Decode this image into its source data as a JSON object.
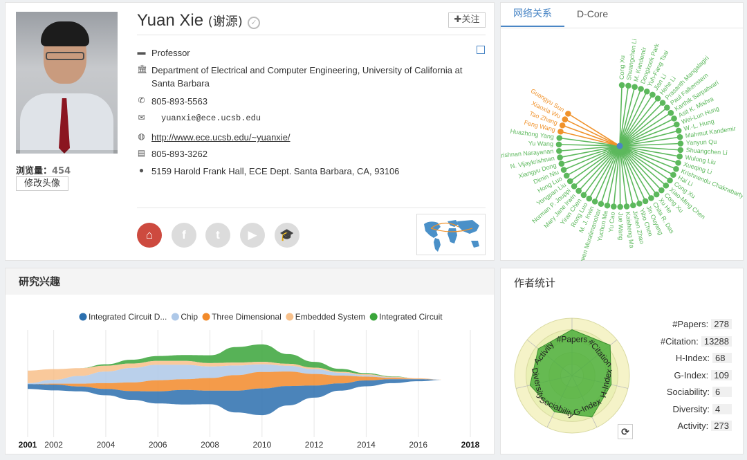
{
  "profile": {
    "name": "Yuan Xie",
    "name_cn": "(谢源)",
    "verify_icon": "check-circle-icon",
    "follow_label": "✚关注",
    "views_label": "浏览量：",
    "views_count": "454",
    "edit_avatar_label": "修改头像",
    "position": "Professor",
    "affiliation": "Department of Electrical and Computer Engineering, University of California at Santa Barbara",
    "phone": "805-893-5563",
    "email": "yuanxie@ece.ucsb.edu",
    "homepage": "http://www.ece.ucsb.edu/~yuanxie/",
    "fax": "805-893-3262",
    "address": "5159 Harold Frank Hall, ECE Dept. Santa Barbara, CA, 93106",
    "social_icons": [
      "home-icon",
      "facebook-icon",
      "twitter-icon",
      "youtube-icon",
      "scholar-icon"
    ],
    "accent_home": "#cd4a3f"
  },
  "network": {
    "tabs": [
      "网络关系",
      "D-Core"
    ],
    "center": "Yuan Xie",
    "colors": {
      "green": "#5cb85c",
      "orange": "#f0922b",
      "center": "#4a86c5"
    },
    "nodes": [
      {
        "name": "Cong Xu",
        "color": "green"
      },
      {
        "name": "Shuangchen Li",
        "color": "green"
      },
      {
        "name": "M. Kandemir",
        "color": "green"
      },
      {
        "name": "Dongkook Park",
        "color": "green"
      },
      {
        "name": "Yuh-Fang Tsai",
        "color": "green"
      },
      {
        "name": "Jian Li",
        "color": "green"
      },
      {
        "name": "Hehe Li",
        "color": "green"
      },
      {
        "name": "Prasanth Mangalagiri",
        "color": "green"
      },
      {
        "name": "Paul Falkenstern",
        "color": "green"
      },
      {
        "name": "Karthik Sarpatwari",
        "color": "green"
      },
      {
        "name": "Asit K. Mishra",
        "color": "green"
      },
      {
        "name": "Wei-Lun Hung",
        "color": "green"
      },
      {
        "name": "W.-L. Hung",
        "color": "green"
      },
      {
        "name": "Mahmut Kandemir",
        "color": "green"
      },
      {
        "name": "Yanyun Qu",
        "color": "green"
      },
      {
        "name": "Shuangchen Li",
        "color": "green"
      },
      {
        "name": "Wulong Liu",
        "color": "green"
      },
      {
        "name": "Xueqing Li",
        "color": "green"
      },
      {
        "name": "Krishnendu Chakrabarty",
        "color": "green"
      },
      {
        "name": "Hai Li",
        "color": "green"
      },
      {
        "name": "Cong Xu",
        "color": "green"
      },
      {
        "name": "Xiao-Ming Chen",
        "color": "green"
      },
      {
        "name": "Cong Xu",
        "color": "green"
      },
      {
        "name": "Xu He",
        "color": "green"
      },
      {
        "name": "Chita R. Das",
        "color": "green"
      },
      {
        "name": "Jin Ouyang",
        "color": "green"
      },
      {
        "name": "Yibo Chen",
        "color": "green"
      },
      {
        "name": "Jishen Zhao",
        "color": "green"
      },
      {
        "name": "Kaisheng Ma",
        "color": "green"
      },
      {
        "name": "Jue Wang",
        "color": "green"
      },
      {
        "name": "Yu Cao",
        "color": "green"
      },
      {
        "name": "Yuchun Ma",
        "color": "green"
      },
      {
        "name": "Naveen Muralimanohar",
        "color": "green"
      },
      {
        "name": "M. J. Irwin",
        "color": "green"
      },
      {
        "name": "Rong Luo",
        "color": "green"
      },
      {
        "name": "Yiran Chen",
        "color": "green"
      },
      {
        "name": "Mary Jane Irwin",
        "color": "green"
      },
      {
        "name": "Norman P. Jouppi",
        "color": "green"
      },
      {
        "name": "Yongpan Liu",
        "color": "green"
      },
      {
        "name": "Hong Luo",
        "color": "green"
      },
      {
        "name": "Dimin Niu",
        "color": "green"
      },
      {
        "name": "Xiangyu Dong",
        "color": "green"
      },
      {
        "name": "N. Vijaykrishnan",
        "color": "green"
      },
      {
        "name": "Vijaykrishnan Narayanan",
        "color": "green"
      },
      {
        "name": "Yu Wang",
        "color": "green"
      },
      {
        "name": "Huazhong Yang",
        "color": "green"
      },
      {
        "name": "Feng Wang",
        "color": "orange"
      },
      {
        "name": "Tao Zhang",
        "color": "orange"
      },
      {
        "name": "Xiaoxia Wu",
        "color": "orange"
      },
      {
        "name": "Guangyu Sun",
        "color": "orange"
      }
    ]
  },
  "interests": {
    "title": "研究兴趣",
    "chart_data": {
      "type": "area",
      "stacking": "streamgraph",
      "x": [
        2001,
        2002,
        2003,
        2004,
        2005,
        2006,
        2007,
        2008,
        2009,
        2010,
        2011,
        2012,
        2013,
        2014,
        2015,
        2016,
        2017,
        2018
      ],
      "x_tick_labels": [
        "2001",
        "2002",
        "2004",
        "2006",
        "2008",
        "2010",
        "2012",
        "2014",
        "2016",
        "2018"
      ],
      "legend_position": "top",
      "series": [
        {
          "name": "Integrated Circuit D...",
          "color": "#2b6fae",
          "values": [
            1.0,
            1.2,
            1.0,
            1.3,
            1.8,
            2.5,
            3.0,
            2.8,
            4.5,
            5.5,
            4.0,
            2.5,
            1.5,
            1.2,
            0.8,
            0.4,
            0.0,
            0.0
          ]
        },
        {
          "name": "Chip",
          "color": "#aec8e8",
          "values": [
            0.2,
            0.8,
            1.6,
            2.4,
            3.0,
            3.2,
            3.0,
            2.4,
            2.0,
            1.6,
            1.2,
            1.0,
            0.6,
            0.3,
            0.1,
            0.0,
            0.0,
            0.0
          ]
        },
        {
          "name": "Three Dimensional",
          "color": "#f28a2a",
          "values": [
            0.0,
            0.2,
            0.6,
            1.2,
            1.8,
            2.3,
            2.2,
            2.6,
            3.2,
            3.4,
            3.0,
            2.4,
            1.6,
            0.8,
            0.3,
            0.1,
            0.0,
            0.0
          ]
        },
        {
          "name": "Embedded System",
          "color": "#f8c08a",
          "values": [
            2.6,
            2.2,
            1.6,
            1.2,
            0.9,
            0.8,
            0.8,
            0.7,
            0.6,
            0.5,
            0.4,
            0.3,
            0.2,
            0.2,
            0.1,
            0.1,
            0.0,
            0.0
          ]
        },
        {
          "name": "Integrated Circuit",
          "color": "#3aa53a",
          "values": [
            0.0,
            0.0,
            0.0,
            0.3,
            0.8,
            1.0,
            1.2,
            1.6,
            3.2,
            3.6,
            2.0,
            1.2,
            0.6,
            0.2,
            0.1,
            0.0,
            0.0,
            0.0
          ]
        }
      ]
    }
  },
  "stats": {
    "title": "作者统计",
    "refresh_icon": "refresh-icon",
    "items": [
      {
        "label": "#Papers:",
        "value": "278"
      },
      {
        "label": "#Citation:",
        "value": "13288"
      },
      {
        "label": "H-Index:",
        "value": "68"
      },
      {
        "label": "G-Index:",
        "value": "109"
      },
      {
        "label": "Sociability:",
        "value": "6"
      },
      {
        "label": "Diversity:",
        "value": "4"
      },
      {
        "label": "Activity:",
        "value": "273"
      }
    ],
    "radar_axes": [
      "#Papers",
      "#Citation",
      "H-Index",
      "G-Index",
      "Sociability",
      "Diversity",
      "Activity"
    ],
    "radar_levels": [
      0.8,
      0.85,
      0.7,
      0.8,
      0.7,
      0.75,
      0.75
    ]
  }
}
